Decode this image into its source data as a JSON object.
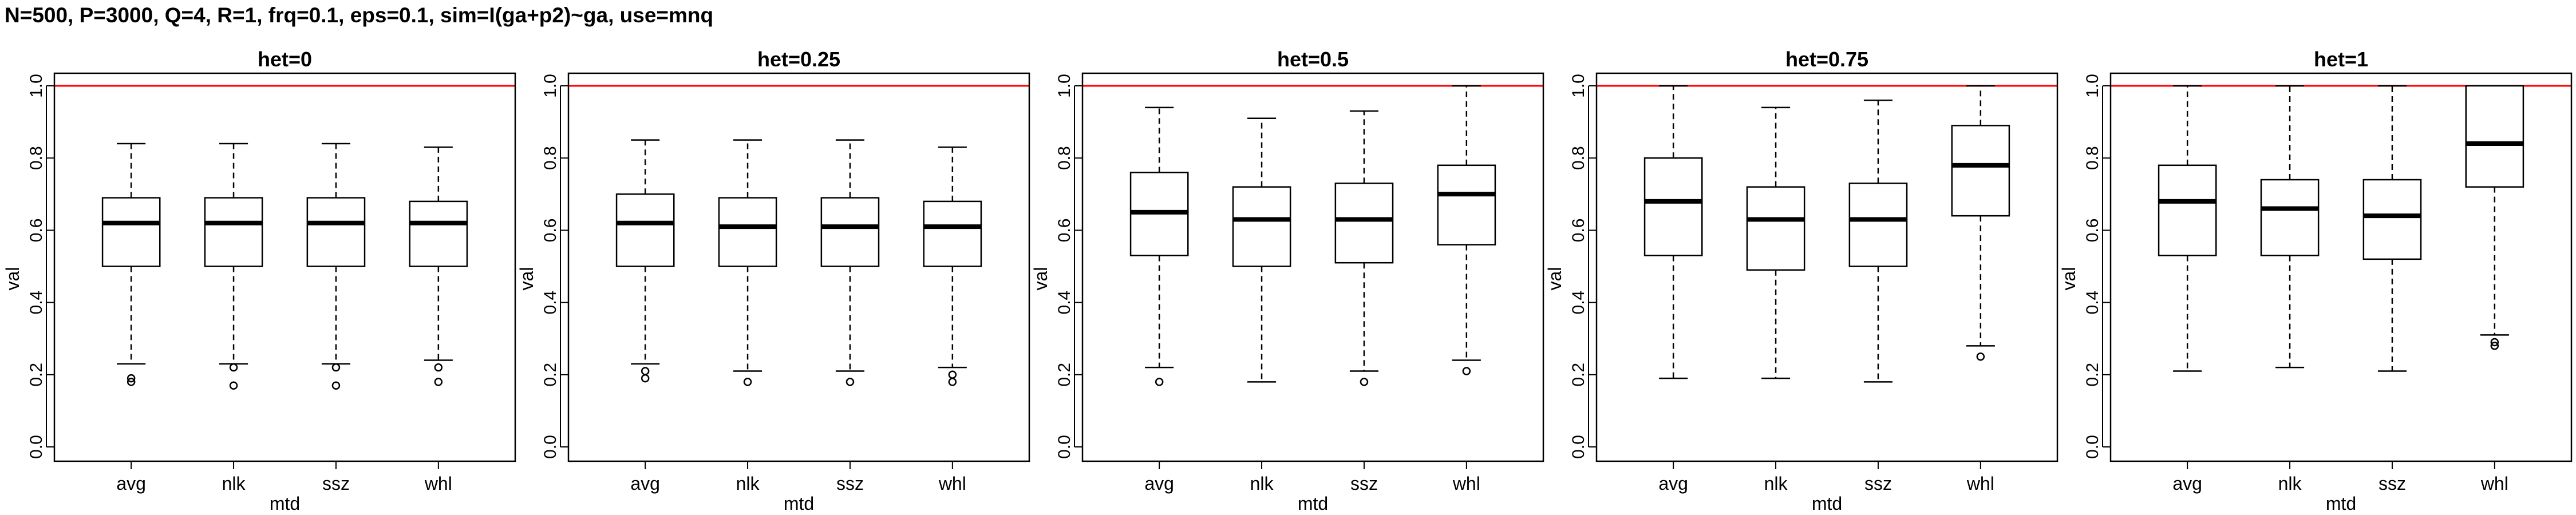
{
  "figure": {
    "title": "N=500, P=3000, Q=4, R=1, frq=0.1, eps=0.1, sim=I(ga+p2)~ga, use=mnq",
    "reference_line_color": "#ff0000"
  },
  "chart_data": [
    {
      "type": "box",
      "title": "het=0",
      "xlabel": "mtd",
      "ylabel": "val",
      "ylim": [
        0,
        1
      ],
      "yticks": [
        "0.0",
        "0.2",
        "0.4",
        "0.6",
        "0.8",
        "1.0"
      ],
      "reference_line": 1.0,
      "categories": [
        "avg",
        "nlk",
        "ssz",
        "whl"
      ],
      "boxes": [
        {
          "min": 0.23,
          "q1": 0.5,
          "median": 0.62,
          "q3": 0.69,
          "max": 0.84,
          "outliers": [
            0.18,
            0.19
          ]
        },
        {
          "min": 0.23,
          "q1": 0.5,
          "median": 0.62,
          "q3": 0.69,
          "max": 0.84,
          "outliers": [
            0.17,
            0.22
          ]
        },
        {
          "min": 0.23,
          "q1": 0.5,
          "median": 0.62,
          "q3": 0.69,
          "max": 0.84,
          "outliers": [
            0.17,
            0.22
          ]
        },
        {
          "min": 0.24,
          "q1": 0.5,
          "median": 0.62,
          "q3": 0.68,
          "max": 0.83,
          "outliers": [
            0.18,
            0.22
          ]
        }
      ]
    },
    {
      "type": "box",
      "title": "het=0.25",
      "xlabel": "mtd",
      "ylabel": "val",
      "ylim": [
        0,
        1
      ],
      "yticks": [
        "0.0",
        "0.2",
        "0.4",
        "0.6",
        "0.8",
        "1.0"
      ],
      "reference_line": 1.0,
      "categories": [
        "avg",
        "nlk",
        "ssz",
        "whl"
      ],
      "boxes": [
        {
          "min": 0.23,
          "q1": 0.5,
          "median": 0.62,
          "q3": 0.7,
          "max": 0.85,
          "outliers": [
            0.19,
            0.21
          ]
        },
        {
          "min": 0.21,
          "q1": 0.5,
          "median": 0.61,
          "q3": 0.69,
          "max": 0.85,
          "outliers": [
            0.18
          ]
        },
        {
          "min": 0.21,
          "q1": 0.5,
          "median": 0.61,
          "q3": 0.69,
          "max": 0.85,
          "outliers": [
            0.18
          ]
        },
        {
          "min": 0.22,
          "q1": 0.5,
          "median": 0.61,
          "q3": 0.68,
          "max": 0.83,
          "outliers": [
            0.18,
            0.2
          ]
        }
      ]
    },
    {
      "type": "box",
      "title": "het=0.5",
      "xlabel": "mtd",
      "ylabel": "val",
      "ylim": [
        0,
        1
      ],
      "yticks": [
        "0.0",
        "0.2",
        "0.4",
        "0.6",
        "0.8",
        "1.0"
      ],
      "reference_line": 1.0,
      "categories": [
        "avg",
        "nlk",
        "ssz",
        "whl"
      ],
      "boxes": [
        {
          "min": 0.22,
          "q1": 0.53,
          "median": 0.65,
          "q3": 0.76,
          "max": 0.94,
          "outliers": [
            0.18
          ]
        },
        {
          "min": 0.18,
          "q1": 0.5,
          "median": 0.63,
          "q3": 0.72,
          "max": 0.91,
          "outliers": []
        },
        {
          "min": 0.21,
          "q1": 0.51,
          "median": 0.63,
          "q3": 0.73,
          "max": 0.93,
          "outliers": [
            0.18
          ]
        },
        {
          "min": 0.24,
          "q1": 0.56,
          "median": 0.7,
          "q3": 0.78,
          "max": 1.0,
          "outliers": [
            0.21
          ]
        }
      ]
    },
    {
      "type": "box",
      "title": "het=0.75",
      "xlabel": "mtd",
      "ylabel": "val",
      "ylim": [
        0,
        1
      ],
      "yticks": [
        "0.0",
        "0.2",
        "0.4",
        "0.6",
        "0.8",
        "1.0"
      ],
      "reference_line": 1.0,
      "categories": [
        "avg",
        "nlk",
        "ssz",
        "whl"
      ],
      "boxes": [
        {
          "min": 0.19,
          "q1": 0.53,
          "median": 0.68,
          "q3": 0.8,
          "max": 1.0,
          "outliers": []
        },
        {
          "min": 0.19,
          "q1": 0.49,
          "median": 0.63,
          "q3": 0.72,
          "max": 0.94,
          "outliers": []
        },
        {
          "min": 0.18,
          "q1": 0.5,
          "median": 0.63,
          "q3": 0.73,
          "max": 0.96,
          "outliers": []
        },
        {
          "min": 0.28,
          "q1": 0.64,
          "median": 0.78,
          "q3": 0.89,
          "max": 1.0,
          "outliers": [
            0.25
          ]
        }
      ]
    },
    {
      "type": "box",
      "title": "het=1",
      "xlabel": "mtd",
      "ylabel": "val",
      "ylim": [
        0,
        1
      ],
      "yticks": [
        "0.0",
        "0.2",
        "0.4",
        "0.6",
        "0.8",
        "1.0"
      ],
      "reference_line": 1.0,
      "categories": [
        "avg",
        "nlk",
        "ssz",
        "whl"
      ],
      "boxes": [
        {
          "min": 0.21,
          "q1": 0.53,
          "median": 0.68,
          "q3": 0.78,
          "max": 1.0,
          "outliers": []
        },
        {
          "min": 0.22,
          "q1": 0.53,
          "median": 0.66,
          "q3": 0.74,
          "max": 1.0,
          "outliers": []
        },
        {
          "min": 0.21,
          "q1": 0.52,
          "median": 0.64,
          "q3": 0.74,
          "max": 1.0,
          "outliers": []
        },
        {
          "min": 0.31,
          "q1": 0.72,
          "median": 0.84,
          "q3": 1.0,
          "max": 1.0,
          "outliers": [
            0.29,
            0.28
          ]
        }
      ]
    }
  ]
}
